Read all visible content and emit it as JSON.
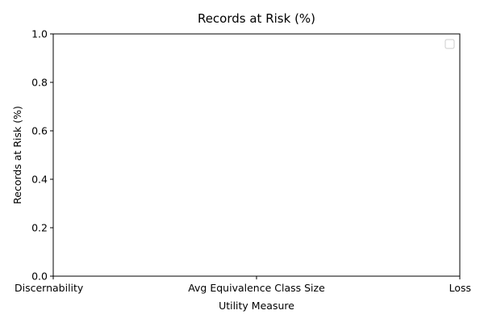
{
  "chart_data": {
    "type": "line",
    "title": "Records at Risk (%)",
    "xlabel": "Utility Measure",
    "ylabel": "Records at Risk (%)",
    "categories": [
      "Discernability",
      "Avg Equivalence Class Size",
      "Loss"
    ],
    "yticks": [
      "0.0",
      "0.2",
      "0.4",
      "0.6",
      "0.8",
      "1.0"
    ],
    "ylim": [
      0,
      1
    ],
    "series": [],
    "legend": {
      "placement": "top-right",
      "entries": []
    },
    "grid": false
  },
  "colors": {
    "axis": "#000000",
    "background": "#ffffff",
    "legend_border": "#cccccc"
  }
}
